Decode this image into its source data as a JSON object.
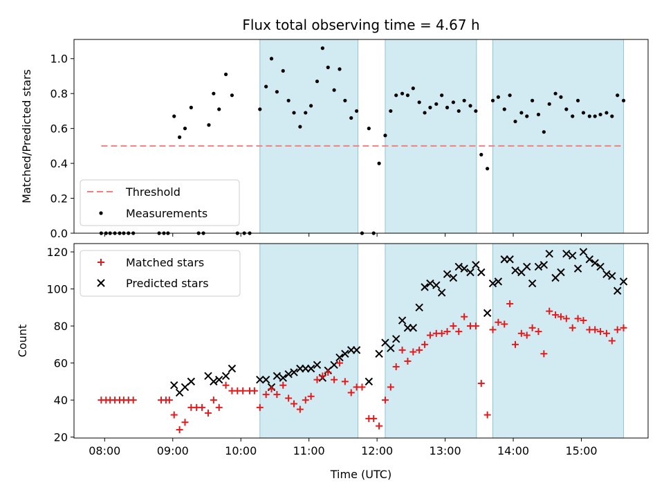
{
  "chart_data": [
    {
      "type": "scatter",
      "title": "Flux total observing time = 4.67 h",
      "ylabel": "Matched/Predicted stars",
      "xlabel": "",
      "x_unit": "hours UTC",
      "xlim": [
        7.55,
        15.98
      ],
      "ylim": [
        0.0,
        1.11
      ],
      "yticks": [
        0.0,
        0.2,
        0.4,
        0.6,
        0.8,
        1.0
      ],
      "ytick_labels": [
        "0.0",
        "0.2",
        "0.4",
        "0.6",
        "0.8",
        "1.0"
      ],
      "observing_windows": [
        [
          10.28,
          11.72
        ],
        [
          12.12,
          13.46
        ],
        [
          13.7,
          15.62
        ]
      ],
      "threshold": {
        "name": "Threshold",
        "value": 0.5,
        "x_range": [
          7.95,
          15.62
        ],
        "color": "#f08080"
      },
      "measurements": {
        "name": "Measurements",
        "color": "#000000",
        "points": [
          [
            7.95,
            0.0
          ],
          [
            8.02,
            0.0
          ],
          [
            8.08,
            0.0
          ],
          [
            8.15,
            0.0
          ],
          [
            8.22,
            0.0
          ],
          [
            8.28,
            0.0
          ],
          [
            8.35,
            0.0
          ],
          [
            8.42,
            0.0
          ],
          [
            8.8,
            0.0
          ],
          [
            8.87,
            0.0
          ],
          [
            8.93,
            0.0
          ],
          [
            9.02,
            0.67
          ],
          [
            9.1,
            0.55
          ],
          [
            9.18,
            0.6
          ],
          [
            9.27,
            0.72
          ],
          [
            9.38,
            0.0
          ],
          [
            9.45,
            0.0
          ],
          [
            9.53,
            0.62
          ],
          [
            9.6,
            0.8
          ],
          [
            9.68,
            0.71
          ],
          [
            9.78,
            0.91
          ],
          [
            9.87,
            0.79
          ],
          [
            9.95,
            0.0
          ],
          [
            10.05,
            0.0
          ],
          [
            10.13,
            0.0
          ],
          [
            10.28,
            0.71
          ],
          [
            10.37,
            0.84
          ],
          [
            10.45,
            1.0
          ],
          [
            10.53,
            0.81
          ],
          [
            10.62,
            0.93
          ],
          [
            10.7,
            0.76
          ],
          [
            10.78,
            0.69
          ],
          [
            10.87,
            0.61
          ],
          [
            10.95,
            0.69
          ],
          [
            11.03,
            0.73
          ],
          [
            11.12,
            0.87
          ],
          [
            11.2,
            1.06
          ],
          [
            11.28,
            0.95
          ],
          [
            11.37,
            0.82
          ],
          [
            11.45,
            0.94
          ],
          [
            11.53,
            0.76
          ],
          [
            11.62,
            0.66
          ],
          [
            11.7,
            0.7
          ],
          [
            11.78,
            0.0
          ],
          [
            11.88,
            0.6
          ],
          [
            11.95,
            0.0
          ],
          [
            12.03,
            0.4
          ],
          [
            12.12,
            0.56
          ],
          [
            12.2,
            0.7
          ],
          [
            12.28,
            0.79
          ],
          [
            12.37,
            0.8
          ],
          [
            12.45,
            0.79
          ],
          [
            12.53,
            0.83
          ],
          [
            12.62,
            0.75
          ],
          [
            12.7,
            0.69
          ],
          [
            12.78,
            0.72
          ],
          [
            12.87,
            0.74
          ],
          [
            12.95,
            0.79
          ],
          [
            13.03,
            0.72
          ],
          [
            13.12,
            0.75
          ],
          [
            13.2,
            0.7
          ],
          [
            13.28,
            0.76
          ],
          [
            13.37,
            0.73
          ],
          [
            13.45,
            0.7
          ],
          [
            13.53,
            0.45
          ],
          [
            13.62,
            0.37
          ],
          [
            13.7,
            0.76
          ],
          [
            13.78,
            0.78
          ],
          [
            13.87,
            0.71
          ],
          [
            13.95,
            0.79
          ],
          [
            14.03,
            0.64
          ],
          [
            14.12,
            0.69
          ],
          [
            14.2,
            0.67
          ],
          [
            14.28,
            0.76
          ],
          [
            14.37,
            0.68
          ],
          [
            14.45,
            0.58
          ],
          [
            14.53,
            0.74
          ],
          [
            14.62,
            0.8
          ],
          [
            14.7,
            0.78
          ],
          [
            14.78,
            0.71
          ],
          [
            14.87,
            0.67
          ],
          [
            14.95,
            0.76
          ],
          [
            15.03,
            0.69
          ],
          [
            15.12,
            0.67
          ],
          [
            15.2,
            0.67
          ],
          [
            15.28,
            0.68
          ],
          [
            15.37,
            0.69
          ],
          [
            15.45,
            0.67
          ],
          [
            15.53,
            0.79
          ],
          [
            15.62,
            0.76
          ]
        ]
      },
      "legend": [
        "Threshold",
        "Measurements"
      ],
      "legend_position": "lower-left"
    },
    {
      "type": "scatter",
      "title": "",
      "ylabel": "Count",
      "xlabel": "Time (UTC)",
      "x_unit": "hours UTC",
      "xlim": [
        7.55,
        15.98
      ],
      "ylim": [
        19.5,
        124.5
      ],
      "xticks": [
        8,
        9,
        10,
        11,
        12,
        13,
        14,
        15
      ],
      "xtick_labels": [
        "08:00",
        "09:00",
        "10:00",
        "11:00",
        "12:00",
        "13:00",
        "14:00",
        "15:00"
      ],
      "yticks": [
        20,
        40,
        60,
        80,
        100,
        120
      ],
      "ytick_labels": [
        "20",
        "40",
        "60",
        "80",
        "100",
        "120"
      ],
      "observing_windows": [
        [
          10.28,
          11.72
        ],
        [
          12.12,
          13.46
        ],
        [
          13.7,
          15.62
        ]
      ],
      "series": [
        {
          "name": "Matched stars",
          "marker": "plus",
          "color": "#e31a1c",
          "points": [
            [
              7.95,
              40
            ],
            [
              8.02,
              40
            ],
            [
              8.08,
              40
            ],
            [
              8.15,
              40
            ],
            [
              8.22,
              40
            ],
            [
              8.28,
              40
            ],
            [
              8.35,
              40
            ],
            [
              8.42,
              40
            ],
            [
              8.83,
              40
            ],
            [
              8.9,
              40
            ],
            [
              8.95,
              40
            ],
            [
              9.02,
              32
            ],
            [
              9.1,
              24
            ],
            [
              9.18,
              28
            ],
            [
              9.27,
              36
            ],
            [
              9.35,
              36
            ],
            [
              9.43,
              36
            ],
            [
              9.52,
              33
            ],
            [
              9.6,
              40
            ],
            [
              9.68,
              36
            ],
            [
              9.78,
              48
            ],
            [
              9.87,
              45
            ],
            [
              9.95,
              45
            ],
            [
              10.03,
              45
            ],
            [
              10.13,
              45
            ],
            [
              10.2,
              45
            ],
            [
              10.28,
              36
            ],
            [
              10.37,
              43
            ],
            [
              10.45,
              46
            ],
            [
              10.53,
              43
            ],
            [
              10.62,
              48
            ],
            [
              10.7,
              41
            ],
            [
              10.78,
              38
            ],
            [
              10.87,
              35
            ],
            [
              10.95,
              40
            ],
            [
              11.03,
              42
            ],
            [
              11.12,
              51
            ],
            [
              11.2,
              53
            ],
            [
              11.28,
              55
            ],
            [
              11.37,
              51
            ],
            [
              11.45,
              60
            ],
            [
              11.53,
              50
            ],
            [
              11.62,
              44
            ],
            [
              11.7,
              47
            ],
            [
              11.78,
              47
            ],
            [
              11.88,
              30
            ],
            [
              11.95,
              30
            ],
            [
              12.03,
              26
            ],
            [
              12.12,
              40
            ],
            [
              12.2,
              47
            ],
            [
              12.28,
              58
            ],
            [
              12.37,
              67
            ],
            [
              12.45,
              61
            ],
            [
              12.53,
              66
            ],
            [
              12.62,
              67
            ],
            [
              12.7,
              70
            ],
            [
              12.78,
              75
            ],
            [
              12.87,
              76
            ],
            [
              12.95,
              76
            ],
            [
              13.03,
              77
            ],
            [
              13.12,
              80
            ],
            [
              13.2,
              77
            ],
            [
              13.28,
              85
            ],
            [
              13.37,
              80
            ],
            [
              13.45,
              80
            ],
            [
              13.53,
              49
            ],
            [
              13.62,
              32
            ],
            [
              13.7,
              78
            ],
            [
              13.78,
              82
            ],
            [
              13.87,
              81
            ],
            [
              13.95,
              92
            ],
            [
              14.03,
              70
            ],
            [
              14.12,
              76
            ],
            [
              14.2,
              75
            ],
            [
              14.28,
              79
            ],
            [
              14.37,
              77
            ],
            [
              14.45,
              65
            ],
            [
              14.53,
              88
            ],
            [
              14.62,
              86
            ],
            [
              14.7,
              85
            ],
            [
              14.78,
              84
            ],
            [
              14.87,
              79
            ],
            [
              14.95,
              84
            ],
            [
              15.03,
              83
            ],
            [
              15.12,
              78
            ],
            [
              15.2,
              78
            ],
            [
              15.28,
              77
            ],
            [
              15.37,
              76
            ],
            [
              15.45,
              72
            ],
            [
              15.53,
              78
            ],
            [
              15.62,
              79
            ]
          ]
        },
        {
          "name": "Predicted stars",
          "marker": "x",
          "color": "#000000",
          "points": [
            [
              9.02,
              48
            ],
            [
              9.1,
              44
            ],
            [
              9.18,
              47
            ],
            [
              9.27,
              50
            ],
            [
              9.52,
              53
            ],
            [
              9.6,
              50
            ],
            [
              9.68,
              51
            ],
            [
              9.78,
              53
            ],
            [
              9.87,
              57
            ],
            [
              10.28,
              51
            ],
            [
              10.37,
              51
            ],
            [
              10.45,
              47
            ],
            [
              10.53,
              53
            ],
            [
              10.62,
              52
            ],
            [
              10.7,
              54
            ],
            [
              10.78,
              55
            ],
            [
              10.87,
              57
            ],
            [
              10.95,
              57
            ],
            [
              11.03,
              57
            ],
            [
              11.12,
              59
            ],
            [
              11.2,
              52
            ],
            [
              11.28,
              56
            ],
            [
              11.37,
              59
            ],
            [
              11.45,
              63
            ],
            [
              11.53,
              65
            ],
            [
              11.62,
              67
            ],
            [
              11.7,
              67
            ],
            [
              11.88,
              50
            ],
            [
              12.03,
              65
            ],
            [
              12.12,
              71
            ],
            [
              12.2,
              68
            ],
            [
              12.28,
              73
            ],
            [
              12.37,
              83
            ],
            [
              12.45,
              79
            ],
            [
              12.53,
              79
            ],
            [
              12.62,
              90
            ],
            [
              12.7,
              101
            ],
            [
              12.78,
              103
            ],
            [
              12.87,
              102
            ],
            [
              12.95,
              98
            ],
            [
              13.03,
              108
            ],
            [
              13.12,
              106
            ],
            [
              13.2,
              112
            ],
            [
              13.28,
              111
            ],
            [
              13.37,
              109
            ],
            [
              13.45,
              113
            ],
            [
              13.53,
              109
            ],
            [
              13.62,
              87
            ],
            [
              13.7,
              103
            ],
            [
              13.78,
              104
            ],
            [
              13.87,
              116
            ],
            [
              13.95,
              116
            ],
            [
              14.03,
              110
            ],
            [
              14.12,
              109
            ],
            [
              14.2,
              112
            ],
            [
              14.28,
              103
            ],
            [
              14.37,
              112
            ],
            [
              14.45,
              113
            ],
            [
              14.53,
              119
            ],
            [
              14.62,
              106
            ],
            [
              14.7,
              109
            ],
            [
              14.78,
              119
            ],
            [
              14.87,
              118
            ],
            [
              14.95,
              111
            ],
            [
              15.03,
              120
            ],
            [
              15.12,
              116
            ],
            [
              15.2,
              114
            ],
            [
              15.28,
              112
            ],
            [
              15.37,
              108
            ],
            [
              15.45,
              107
            ],
            [
              15.53,
              99
            ],
            [
              15.62,
              104
            ]
          ]
        }
      ],
      "legend": [
        "Matched stars",
        "Predicted stars"
      ],
      "legend_position": "upper-left"
    }
  ],
  "colors": {
    "window_fill": "#add8e6",
    "window_edge": "#8fc3d6"
  }
}
